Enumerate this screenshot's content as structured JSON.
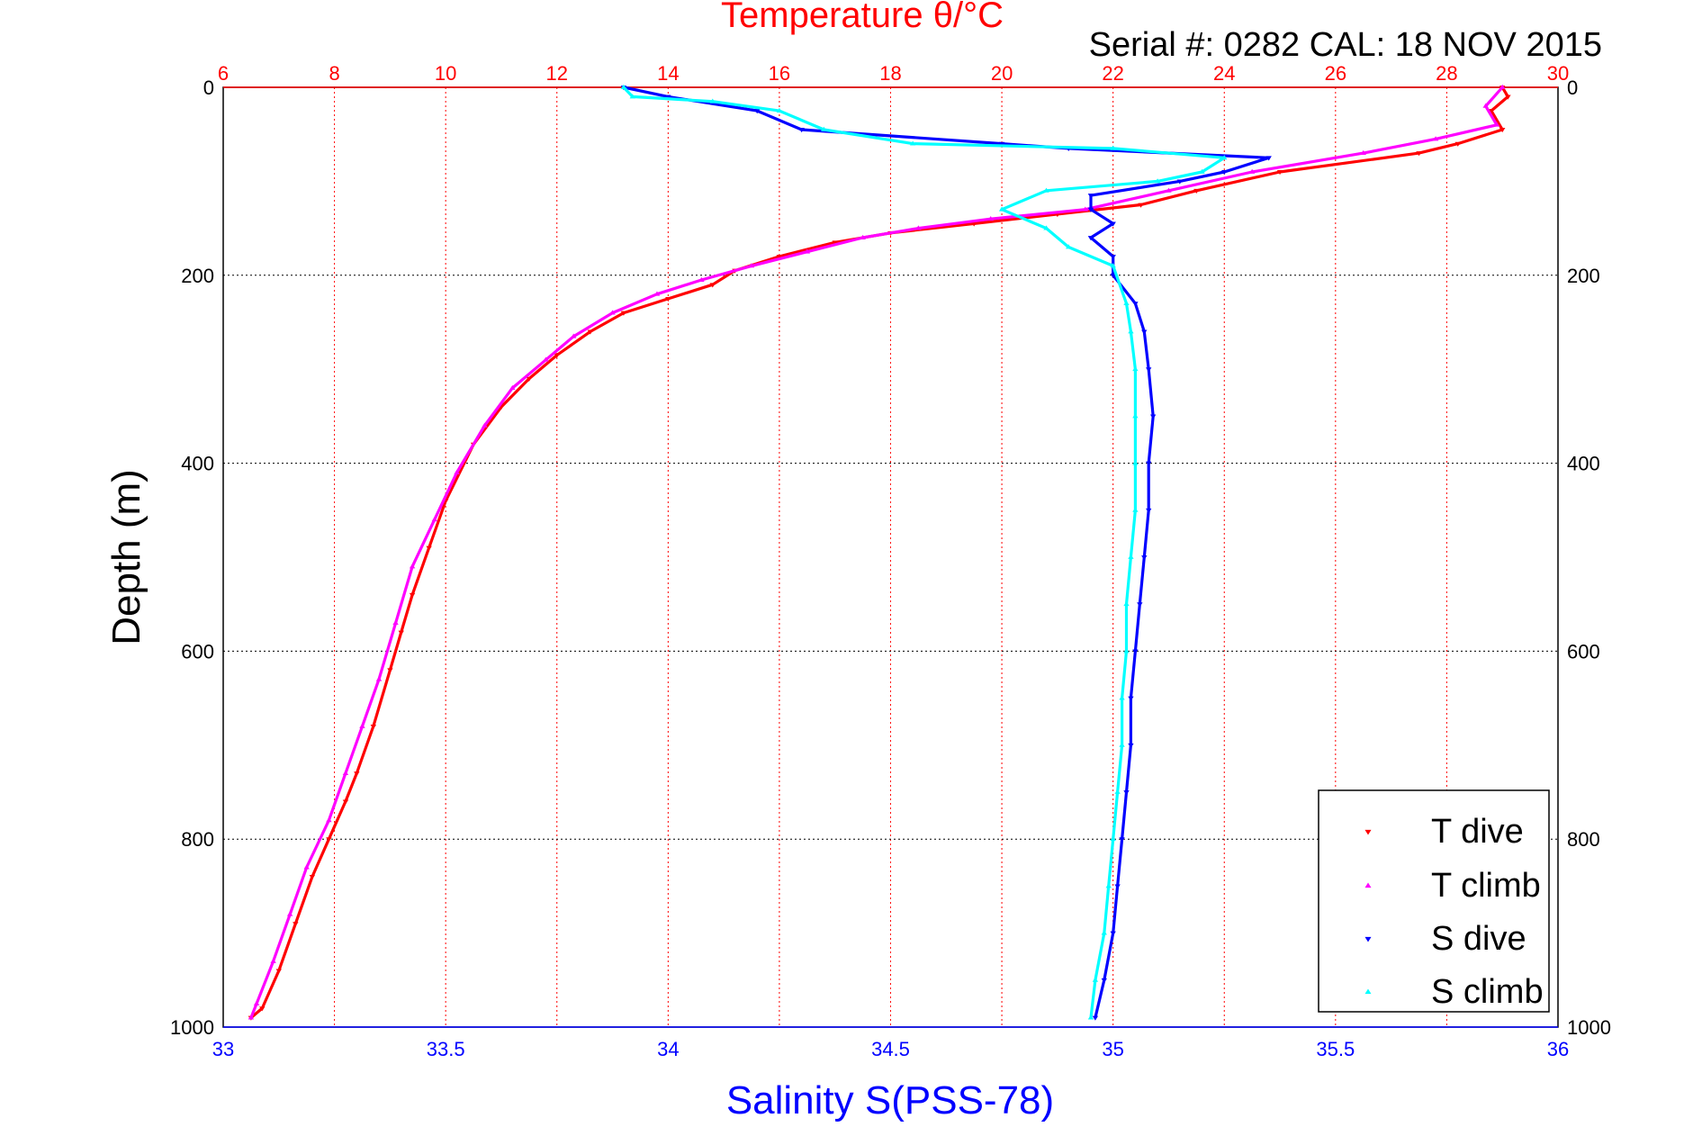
{
  "chart_data": {
    "type": "scatter",
    "title": "Temperature θ/°C",
    "subtitle": "Serial #: 0282  CAL: 18 NOV 2015",
    "ylabel": "Depth (m)",
    "xlabel": "Salinity S(PSS-78)",
    "ylim": [
      0,
      1000
    ],
    "y_reversed": true,
    "y_ticks": [
      0,
      200,
      400,
      600,
      800,
      1000
    ],
    "x_top": {
      "label": "Temperature θ/°C",
      "range": [
        6,
        30
      ],
      "ticks": [
        6,
        8,
        10,
        12,
        14,
        16,
        18,
        20,
        22,
        24,
        26,
        28,
        30
      ],
      "color": "#ff0000"
    },
    "x_bottom": {
      "label": "Salinity S(PSS-78)",
      "range": [
        33,
        36
      ],
      "ticks": [
        33,
        33.5,
        34,
        34.5,
        35,
        35.5,
        36
      ],
      "color": "#0000ff"
    },
    "grid": true,
    "legend": "bottom-right",
    "series": [
      {
        "name": "T dive",
        "axis": "top",
        "marker": "triangle-down",
        "color": "#ff0000",
        "points": [
          [
            29.0,
            0
          ],
          [
            29.1,
            10
          ],
          [
            28.8,
            25
          ],
          [
            29.0,
            45
          ],
          [
            28.2,
            60
          ],
          [
            27.5,
            70
          ],
          [
            25.0,
            90
          ],
          [
            23.5,
            110
          ],
          [
            22.5,
            125
          ],
          [
            21.0,
            135
          ],
          [
            19.5,
            145
          ],
          [
            18.0,
            155
          ],
          [
            17.0,
            165
          ],
          [
            16.0,
            180
          ],
          [
            15.2,
            195
          ],
          [
            14.8,
            210
          ],
          [
            14.0,
            225
          ],
          [
            13.2,
            240
          ],
          [
            12.6,
            260
          ],
          [
            12.0,
            285
          ],
          [
            11.5,
            310
          ],
          [
            11.0,
            340
          ],
          [
            10.5,
            380
          ],
          [
            10.0,
            440
          ],
          [
            9.7,
            490
          ],
          [
            9.4,
            540
          ],
          [
            9.2,
            580
          ],
          [
            9.0,
            620
          ],
          [
            8.7,
            680
          ],
          [
            8.4,
            730
          ],
          [
            8.2,
            760
          ],
          [
            7.9,
            800
          ],
          [
            7.6,
            840
          ],
          [
            7.3,
            890
          ],
          [
            7.0,
            940
          ],
          [
            6.7,
            980
          ],
          [
            6.5,
            990
          ]
        ]
      },
      {
        "name": "T climb",
        "axis": "top",
        "marker": "triangle-up",
        "color": "#ff00ff",
        "points": [
          [
            29.0,
            0
          ],
          [
            28.7,
            20
          ],
          [
            28.9,
            40
          ],
          [
            27.8,
            55
          ],
          [
            26.5,
            70
          ],
          [
            24.5,
            90
          ],
          [
            23.0,
            110
          ],
          [
            21.5,
            130
          ],
          [
            19.8,
            140
          ],
          [
            18.5,
            150
          ],
          [
            17.5,
            160
          ],
          [
            16.5,
            175
          ],
          [
            15.5,
            190
          ],
          [
            14.6,
            205
          ],
          [
            13.8,
            220
          ],
          [
            13.0,
            240
          ],
          [
            12.3,
            265
          ],
          [
            11.8,
            290
          ],
          [
            11.2,
            320
          ],
          [
            10.7,
            360
          ],
          [
            10.2,
            410
          ],
          [
            9.8,
            460
          ],
          [
            9.4,
            510
          ],
          [
            9.1,
            570
          ],
          [
            8.8,
            630
          ],
          [
            8.5,
            680
          ],
          [
            8.2,
            730
          ],
          [
            7.9,
            780
          ],
          [
            7.5,
            830
          ],
          [
            7.2,
            880
          ],
          [
            6.9,
            930
          ],
          [
            6.6,
            975
          ],
          [
            6.5,
            990
          ]
        ]
      },
      {
        "name": "S dive",
        "axis": "bottom",
        "marker": "triangle-down",
        "color": "#0000ff",
        "points": [
          [
            33.9,
            0
          ],
          [
            34.0,
            10
          ],
          [
            34.2,
            25
          ],
          [
            34.3,
            45
          ],
          [
            34.75,
            60
          ],
          [
            34.9,
            65
          ],
          [
            35.35,
            75
          ],
          [
            35.25,
            90
          ],
          [
            35.15,
            100
          ],
          [
            34.95,
            115
          ],
          [
            34.95,
            130
          ],
          [
            35.0,
            145
          ],
          [
            34.95,
            160
          ],
          [
            35.0,
            180
          ],
          [
            35.0,
            200
          ],
          [
            35.05,
            230
          ],
          [
            35.07,
            260
          ],
          [
            35.08,
            300
          ],
          [
            35.09,
            350
          ],
          [
            35.08,
            400
          ],
          [
            35.08,
            450
          ],
          [
            35.07,
            500
          ],
          [
            35.06,
            550
          ],
          [
            35.05,
            600
          ],
          [
            35.04,
            650
          ],
          [
            35.04,
            700
          ],
          [
            35.03,
            750
          ],
          [
            35.02,
            800
          ],
          [
            35.01,
            850
          ],
          [
            35.0,
            900
          ],
          [
            34.98,
            950
          ],
          [
            34.96,
            990
          ]
        ]
      },
      {
        "name": "S climb",
        "axis": "bottom",
        "marker": "triangle-up",
        "color": "#00ffff",
        "points": [
          [
            33.9,
            0
          ],
          [
            33.92,
            10
          ],
          [
            34.1,
            15
          ],
          [
            34.25,
            25
          ],
          [
            34.35,
            45
          ],
          [
            34.55,
            60
          ],
          [
            35.0,
            65
          ],
          [
            35.25,
            75
          ],
          [
            35.2,
            90
          ],
          [
            35.1,
            100
          ],
          [
            34.85,
            110
          ],
          [
            34.75,
            130
          ],
          [
            34.85,
            150
          ],
          [
            34.9,
            170
          ],
          [
            35.0,
            190
          ],
          [
            35.03,
            230
          ],
          [
            35.04,
            260
          ],
          [
            35.05,
            300
          ],
          [
            35.05,
            350
          ],
          [
            35.05,
            400
          ],
          [
            35.05,
            450
          ],
          [
            35.04,
            500
          ],
          [
            35.03,
            550
          ],
          [
            35.03,
            600
          ],
          [
            35.02,
            650
          ],
          [
            35.02,
            700
          ],
          [
            35.01,
            750
          ],
          [
            35.0,
            800
          ],
          [
            34.99,
            850
          ],
          [
            34.98,
            900
          ],
          [
            34.96,
            950
          ],
          [
            34.95,
            990
          ]
        ]
      }
    ]
  }
}
